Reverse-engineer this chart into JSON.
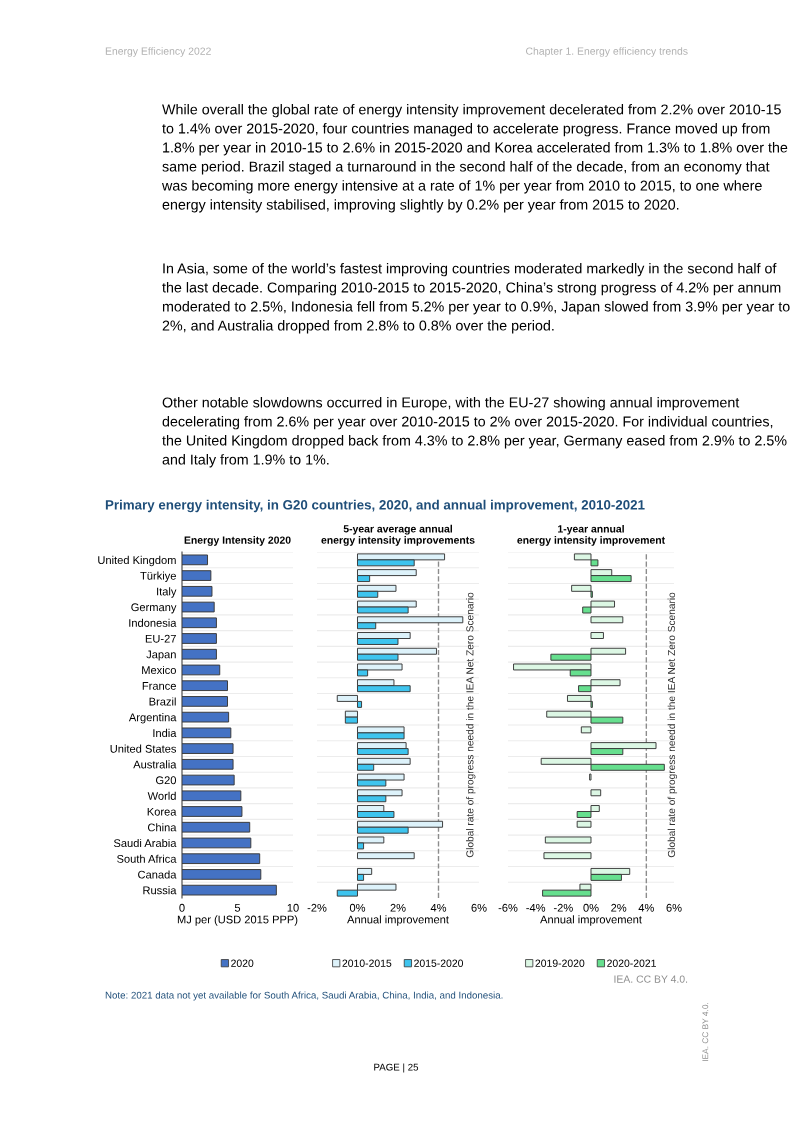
{
  "chart_data": [
    {
      "type": "other",
      "annotations": [
        "Energy Efficiency 2022",
        "Chapter 1. Energy efficiency trends",
        "While overall the global rate of energy intensity improvement decelerated from 2.2% over 2010-15 to 1.4% over 2015-2020, four countries managed to accelerate progress. France moved up from 1.8% per year in 2010-15 to 2.6% in 2015-2020 and Korea accelerated from 1.3% to 1.8% over the same period. Brazil staged a turnaround in the second half of the decade, from an economy that was becoming more energy intensive at a rate of 1% per year from 2010 to 2015, to one where energy intensity stabilised, improving slightly by 0.2% per year from 2015 to 2020.",
        "In Asia, some of the world’s fastest improving countries moderated markedly in the second half of the last decade. Comparing 2010-2015 to 2015-2020, China’s strong progress of 4.2% per annum moderated to 2.5%, Indonesia fell from 5.2% per year to 0.9%, Japan slowed from 3.9% per year to 2%, and Australia dropped from 2.8% to 0.8% over the period.",
        "Other notable slowdowns occurred in Europe, with the EU-27 showing annual improvement decelerating from 2.6% per year over 2010-2015 to 2% over 2015-2020. For individual countries, the United Kingdom dropped back from 4.3% to 2.8% per year, Germany eased from 2.9% to 2.5% and Italy from 1.9% to 1%.",
        "Primary energy intensity, in G20 countries, 2020, and annual improvement, 2010-2021"
      ]
    },
    {
      "type": "bar",
      "orientation": "horizontal",
      "title": "Energy Intensity 2020",
      "xlabel": "MJ per (USD 2015 PPP)",
      "categories": [
        "United Kingdom",
        "Türkiye",
        "Italy",
        "Germany",
        "Indonesia",
        "EU-27",
        "Japan",
        "Mexico",
        "France",
        "Brazil",
        "Argentina",
        "India",
        "United States",
        "Australia",
        "G20",
        "World",
        "Korea",
        "China",
        "Saudi Arabia",
        "South Africa",
        "Canada",
        "Russia"
      ],
      "series": [
        {
          "name": "2020",
          "color": "#4472c4",
          "values": [
            2.3,
            2.6,
            2.7,
            2.9,
            3.1,
            3.1,
            3.1,
            3.4,
            4.1,
            4.1,
            4.2,
            4.4,
            4.6,
            4.6,
            4.7,
            5.3,
            5.4,
            6.1,
            6.2,
            7.0,
            7.1,
            8.5
          ]
        }
      ],
      "xlim": [
        0,
        10
      ],
      "xticks": [
        0,
        5,
        10
      ],
      "grid": "y",
      "legend": "bottom"
    },
    {
      "type": "bar",
      "orientation": "horizontal",
      "title": "5-year average annual\nenergy intensity improvements",
      "xlabel": "Annual improvement",
      "categories": [
        null,
        null,
        null,
        null,
        null,
        null,
        null,
        null,
        null,
        null,
        null,
        null,
        null,
        null,
        null,
        null,
        null,
        null,
        null,
        null,
        null,
        null
      ],
      "series": [
        {
          "name": "2010-2015",
          "color": "#ddf2fa",
          "values": [
            4.3,
            2.9,
            1.9,
            2.9,
            5.2,
            2.6,
            3.9,
            2.2,
            1.8,
            -1.0,
            -0.6,
            2.3,
            2.4,
            2.6,
            2.3,
            2.2,
            1.3,
            4.2,
            1.3,
            2.8,
            0.7,
            1.9
          ]
        },
        {
          "name": "2015-2020",
          "color": "#3ec4ee",
          "values": [
            2.8,
            0.6,
            1.0,
            2.5,
            0.9,
            2.0,
            2.0,
            0.5,
            2.6,
            0.2,
            -0.6,
            2.3,
            2.5,
            0.8,
            1.4,
            1.4,
            1.8,
            2.5,
            0.3,
            null,
            0.3,
            -1.0
          ]
        }
      ],
      "xlim": [
        -2,
        6
      ],
      "xticks": [
        {
          "value": -2,
          "label": "-2%"
        },
        {
          "value": 0,
          "label": "0%"
        },
        {
          "value": 2,
          "label": "2%"
        },
        {
          "value": 4,
          "label": "4%"
        },
        {
          "value": 6,
          "label": "6%"
        }
      ],
      "ref_lines": [
        {
          "axis": "x",
          "value": 4,
          "label": "Global rate of progress needd in the IEA Net Zero Scenario",
          "color": "#8c8c8c",
          "line_style": "dashed"
        }
      ],
      "tick_labels": "x",
      "grid": "y",
      "legend": "bottom"
    },
    {
      "type": "bar",
      "orientation": "horizontal",
      "title": "1-year annual\nenergy intensity improvement",
      "xlabel": "Annual improvement",
      "categories": [
        null,
        null,
        null,
        null,
        null,
        null,
        null,
        null,
        null,
        null,
        null,
        null,
        null,
        null,
        null,
        null,
        null,
        null,
        null,
        null,
        null,
        null
      ],
      "series": [
        {
          "name": "2019-2020",
          "color": "#dcf7e4",
          "values": [
            -1.2,
            1.5,
            -1.4,
            1.7,
            2.3,
            0.9,
            2.5,
            -5.6,
            2.1,
            -1.7,
            -3.2,
            -0.7,
            4.7,
            -3.6,
            -0.1,
            0.7,
            0.6,
            -1.0,
            -3.3,
            -3.4,
            2.8,
            -0.8
          ]
        },
        {
          "name": "2020-2021",
          "color": "#66df8e",
          "values": [
            0.5,
            2.9,
            0.1,
            -0.6,
            null,
            null,
            -2.9,
            -1.5,
            -0.9,
            0.1,
            2.3,
            null,
            2.3,
            5.3,
            null,
            null,
            -1.0,
            null,
            null,
            null,
            2.2,
            -3.5
          ]
        }
      ],
      "xlim": [
        -6,
        6
      ],
      "xticks": [
        {
          "value": -6,
          "label": "-6%"
        },
        {
          "value": -4,
          "label": "-4%"
        },
        {
          "value": -2,
          "label": "-2%"
        },
        {
          "value": 0,
          "label": "0%"
        },
        {
          "value": 2,
          "label": "2%"
        },
        {
          "value": 4,
          "label": "4%"
        },
        {
          "value": 6,
          "label": "6%"
        }
      ],
      "ref_lines": [
        {
          "axis": "x",
          "value": 4,
          "label": "Global rate of progress needd in the IEA Net Zero Scenario",
          "color": "#8c8c8c",
          "line_style": "dashed"
        }
      ],
      "tick_labels": "x",
      "grid": "y",
      "legend": "bottom"
    },
    {
      "type": "other",
      "annotations": [
        "IEA. CC BY 4.0.",
        "Note: 2021 data not yet available for South Africa, Saudi Arabia, China, India, and Indonesia.",
        "PAGE | 25",
        "IEA. CC BY 4.0."
      ]
    }
  ]
}
